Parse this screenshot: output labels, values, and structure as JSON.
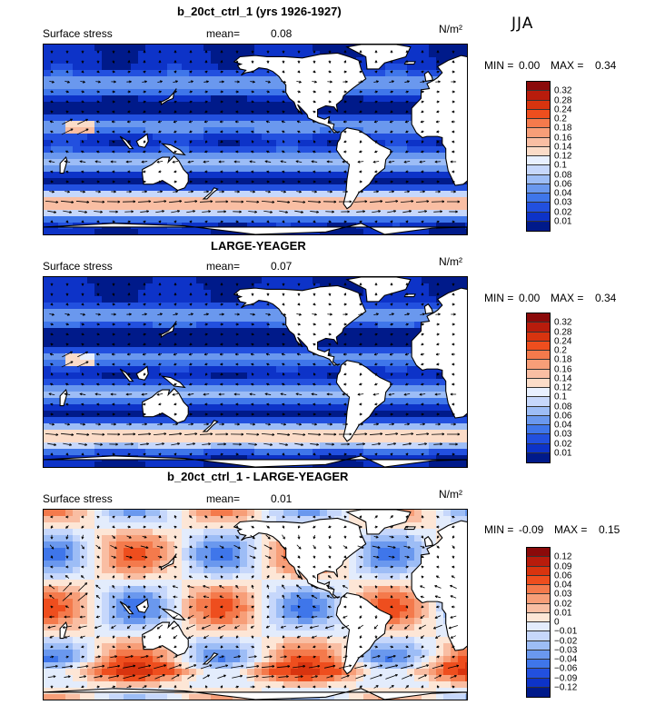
{
  "season": "JJA",
  "panels": [
    {
      "title": "b_20ct_ctrl_1 (yrs 1926-1927)",
      "field": "Surface stress",
      "mean_label": "mean=",
      "mean_value": "0.08",
      "units": "N/m²",
      "min_label": "MIN =",
      "min_value": "0.00",
      "max_label": "MAX =",
      "max_value": "0.34",
      "levels": [
        "0.32",
        "0.28",
        "0.24",
        "0.2",
        "0.18",
        "0.16",
        "0.14",
        "0.12",
        "0.1",
        "0.08",
        "0.06",
        "0.04",
        "0.03",
        "0.02",
        "0.01"
      ],
      "colors": [
        "#8b0a0a",
        "#b81c0c",
        "#d8340f",
        "#ee4e1e",
        "#f47a4c",
        "#f79e78",
        "#f9bea3",
        "#fbdcc8",
        "#e8f0ff",
        "#c6d7fb",
        "#9dbdf6",
        "#6a98ee",
        "#3f76ea",
        "#2250df",
        "#0d33c8",
        "#001a8a"
      ]
    },
    {
      "title": "LARGE-YEAGER",
      "field": "Surface stress",
      "mean_label": "mean=",
      "mean_value": "0.07",
      "units": "N/m²",
      "min_label": "MIN =",
      "min_value": "0.00",
      "max_label": "MAX =",
      "max_value": "0.34",
      "levels": [
        "0.32",
        "0.28",
        "0.24",
        "0.2",
        "0.18",
        "0.16",
        "0.14",
        "0.12",
        "0.1",
        "0.08",
        "0.06",
        "0.04",
        "0.03",
        "0.02",
        "0.01"
      ],
      "colors": [
        "#8b0a0a",
        "#b81c0c",
        "#d8340f",
        "#ee4e1e",
        "#f47a4c",
        "#f79e78",
        "#f9bea3",
        "#fbdcc8",
        "#e8f0ff",
        "#c6d7fb",
        "#9dbdf6",
        "#6a98ee",
        "#3f76ea",
        "#2250df",
        "#0d33c8",
        "#001a8a"
      ]
    },
    {
      "title": "b_20ct_ctrl_1 - LARGE-YEAGER",
      "field": "Surface stress",
      "mean_label": "mean=",
      "mean_value": "0.01",
      "units": "N/m²",
      "min_label": "MIN =",
      "min_value": "-0.09",
      "max_label": "MAX =",
      "max_value": "0.15",
      "levels": [
        "0.12",
        "0.09",
        "0.06",
        "0.04",
        "0.03",
        "0.02",
        "0.01",
        "0",
        "−0.01",
        "−0.02",
        "−0.03",
        "−0.04",
        "−0.06",
        "−0.09",
        "−0.12"
      ],
      "colors": [
        "#8b0a0a",
        "#b81c0c",
        "#d8340f",
        "#ee4e1e",
        "#f47a4c",
        "#f79e78",
        "#f9bea3",
        "#fde6d6",
        "#e3ecfc",
        "#c6d7fb",
        "#9dbdf6",
        "#6a98ee",
        "#3f76ea",
        "#2250df",
        "#0d33c8",
        "#001a8a"
      ]
    }
  ]
}
